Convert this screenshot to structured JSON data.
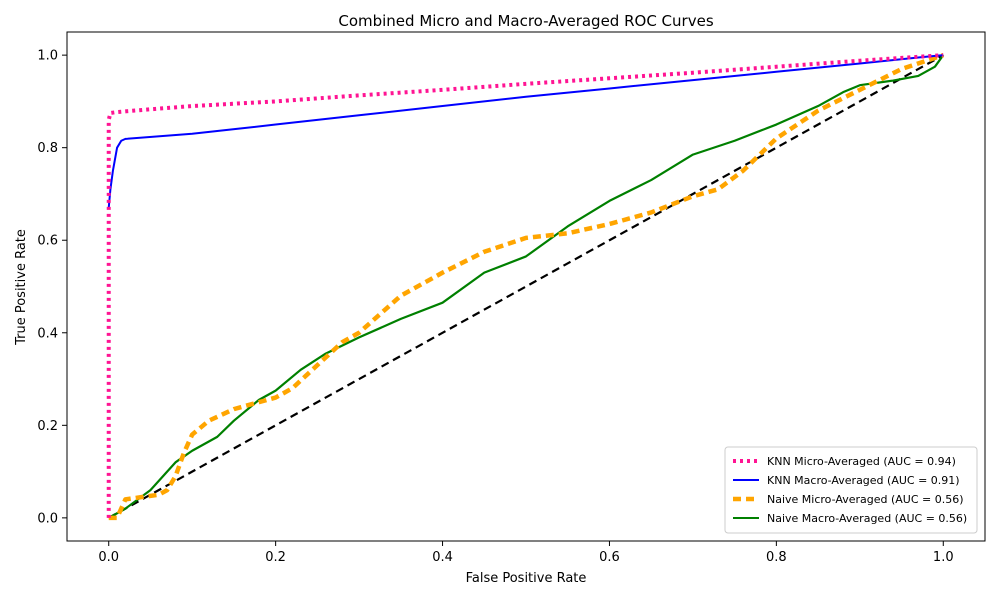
{
  "chart_data": {
    "type": "line",
    "title": "Combined Micro and Macro-Averaged ROC Curves",
    "xlabel": "False Positive Rate",
    "ylabel": "True Positive Rate",
    "xlim": [
      -0.05,
      1.05
    ],
    "ylim": [
      -0.05,
      1.05
    ],
    "xticks": [
      0.0,
      0.2,
      0.4,
      0.6,
      0.8,
      1.0
    ],
    "yticks": [
      0.0,
      0.2,
      0.4,
      0.6,
      0.8,
      1.0
    ],
    "tick_labels_x": [
      "0.0",
      "0.2",
      "0.4",
      "0.6",
      "0.8",
      "1.0"
    ],
    "tick_labels_y": [
      "0.0",
      "0.2",
      "0.4",
      "0.6",
      "0.8",
      "1.0"
    ],
    "grid": false,
    "legend_position": "lower-right",
    "series": [
      {
        "name": "KNN Micro-Averaged (AUC = 0.94)",
        "color": "#ff1493",
        "style": "dotted",
        "x": [
          0.0,
          0.0,
          0.002,
          0.01,
          0.05,
          0.1,
          0.2,
          0.3,
          0.4,
          0.5,
          0.6,
          0.7,
          0.8,
          0.9,
          1.0
        ],
        "y": [
          0.0,
          0.86,
          0.875,
          0.877,
          0.883,
          0.89,
          0.9,
          0.913,
          0.925,
          0.938,
          0.95,
          0.962,
          0.975,
          0.988,
          1.0
        ]
      },
      {
        "name": "KNN Macro-Averaged (AUC = 0.91)",
        "color": "#0000ff",
        "style": "solid",
        "x": [
          0.0,
          0.002,
          0.005,
          0.01,
          0.015,
          0.02,
          0.1,
          0.2,
          0.3,
          0.4,
          0.5,
          0.6,
          0.7,
          0.8,
          0.9,
          0.97,
          1.0
        ],
        "y": [
          0.67,
          0.71,
          0.75,
          0.8,
          0.815,
          0.819,
          0.83,
          0.85,
          0.87,
          0.89,
          0.91,
          0.928,
          0.946,
          0.964,
          0.982,
          0.995,
          1.0
        ]
      },
      {
        "name": "Naive Micro-Averaged (AUC = 0.56)",
        "color": "#ffa500",
        "style": "dashed",
        "x": [
          0.0,
          0.01,
          0.015,
          0.02,
          0.04,
          0.06,
          0.07,
          0.08,
          0.09,
          0.1,
          0.12,
          0.15,
          0.2,
          0.22,
          0.25,
          0.28,
          0.3,
          0.35,
          0.4,
          0.45,
          0.5,
          0.55,
          0.6,
          0.65,
          0.7,
          0.73,
          0.76,
          0.8,
          0.85,
          0.9,
          0.95,
          1.0
        ],
        "y": [
          0.0,
          0.0,
          0.02,
          0.04,
          0.045,
          0.05,
          0.06,
          0.09,
          0.14,
          0.18,
          0.21,
          0.235,
          0.26,
          0.28,
          0.33,
          0.38,
          0.4,
          0.48,
          0.53,
          0.575,
          0.605,
          0.615,
          0.635,
          0.66,
          0.695,
          0.71,
          0.75,
          0.82,
          0.88,
          0.925,
          0.97,
          1.0
        ]
      },
      {
        "name": "Naive Macro-Averaged (AUC = 0.56)",
        "color": "#008000",
        "style": "solid",
        "x": [
          0.0,
          0.02,
          0.05,
          0.08,
          0.1,
          0.13,
          0.15,
          0.18,
          0.2,
          0.23,
          0.26,
          0.3,
          0.35,
          0.4,
          0.45,
          0.5,
          0.55,
          0.6,
          0.65,
          0.7,
          0.75,
          0.8,
          0.85,
          0.88,
          0.9,
          0.94,
          0.97,
          0.99,
          1.0
        ],
        "y": [
          0.0,
          0.02,
          0.06,
          0.12,
          0.145,
          0.175,
          0.21,
          0.255,
          0.275,
          0.32,
          0.355,
          0.39,
          0.43,
          0.465,
          0.53,
          0.565,
          0.63,
          0.685,
          0.73,
          0.785,
          0.815,
          0.85,
          0.89,
          0.92,
          0.935,
          0.945,
          0.955,
          0.975,
          1.0
        ]
      },
      {
        "name": "",
        "color": "#000000",
        "style": "dashed",
        "legend": false,
        "x": [
          0.0,
          1.0
        ],
        "y": [
          0.0,
          1.0
        ]
      }
    ]
  }
}
